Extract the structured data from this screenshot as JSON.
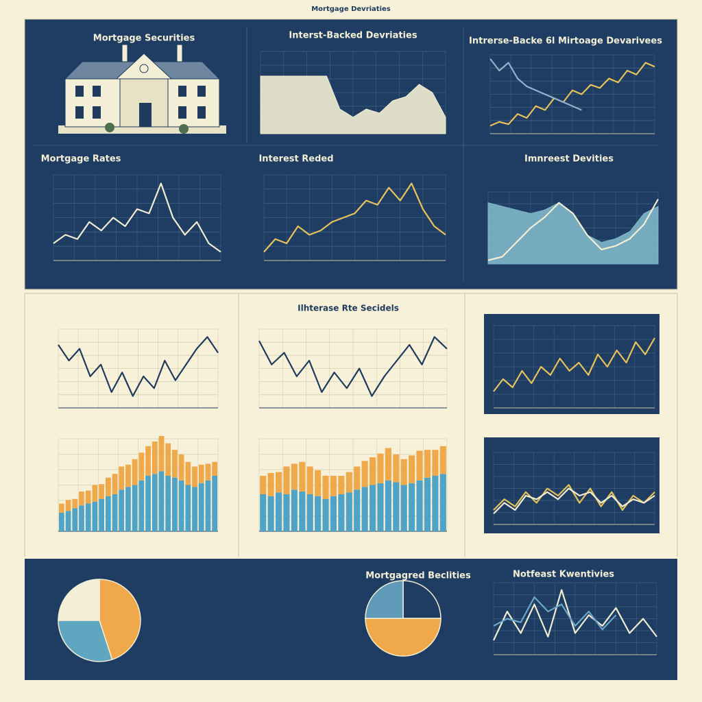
{
  "header": "Mortgage Devriaties",
  "house_panel": {
    "title": "Mortgage Securities"
  },
  "chart_data": [
    {
      "type": "area",
      "title": "Interst-Backed Devriaties",
      "ylim": [
        0,
        100
      ],
      "grid": true,
      "series": [
        {
          "color": "#f2eed3",
          "values": [
            70,
            70,
            70,
            70,
            70,
            70,
            30,
            20,
            30,
            25,
            40,
            45,
            60,
            50,
            20
          ]
        }
      ]
    },
    {
      "type": "line",
      "title": "Intrerse-Backe 6l Mirtoage Devarivees",
      "ylim": [
        0,
        100
      ],
      "grid": true,
      "series": [
        {
          "color": "#e8c35a",
          "values": [
            10,
            15,
            12,
            25,
            20,
            35,
            30,
            45,
            40,
            55,
            50,
            62,
            58,
            70,
            65,
            80,
            75,
            90,
            85
          ]
        },
        {
          "color": "#8fb3c9",
          "values": [
            95,
            80,
            90,
            70,
            60,
            55,
            50,
            45,
            40,
            35,
            30
          ]
        }
      ]
    },
    {
      "type": "line",
      "title": "Mortgage Rates",
      "ylim": [
        0,
        100
      ],
      "grid": true,
      "series": [
        {
          "color": "#f2eed3",
          "values": [
            20,
            30,
            25,
            45,
            35,
            50,
            40,
            60,
            55,
            90,
            50,
            30,
            45,
            20,
            10
          ]
        }
      ]
    },
    {
      "type": "line",
      "title": "Interest Reded",
      "ylim": [
        0,
        100
      ],
      "grid": true,
      "series": [
        {
          "color": "#e8c35a",
          "values": [
            10,
            25,
            20,
            40,
            30,
            35,
            45,
            50,
            55,
            70,
            65,
            85,
            70,
            90,
            60,
            40,
            30
          ]
        }
      ]
    },
    {
      "type": "area",
      "title": "Imnreest Devities",
      "ylim": [
        0,
        100
      ],
      "grid": true,
      "series": [
        {
          "color": "#7fb6c9",
          "values": [
            85,
            80,
            75,
            70,
            75,
            85,
            70,
            40,
            30,
            35,
            45,
            70,
            80
          ]
        },
        {
          "color": "#f2eed3",
          "line": true,
          "values": [
            5,
            10,
            30,
            50,
            65,
            85,
            70,
            40,
            20,
            25,
            35,
            55,
            90
          ]
        }
      ]
    },
    {
      "type": "line",
      "ylim": [
        0,
        100
      ],
      "grid": true,
      "series": [
        {
          "color": "#1e3a5c",
          "values": [
            80,
            60,
            75,
            40,
            55,
            20,
            45,
            15,
            40,
            25,
            60,
            35,
            55,
            75,
            90,
            70
          ]
        }
      ]
    },
    {
      "type": "line",
      "title": "Ilhterase Rte Secidels",
      "ylim": [
        0,
        100
      ],
      "grid": true,
      "series": [
        {
          "color": "#1e3a5c",
          "values": [
            85,
            55,
            70,
            40,
            60,
            20,
            45,
            25,
            50,
            15,
            40,
            60,
            80,
            55,
            90,
            75
          ]
        }
      ]
    },
    {
      "type": "stacked_bar",
      "ylim": [
        0,
        100
      ],
      "grid": true,
      "series": [
        {
          "color": "#4fa3c7",
          "values": [
            20,
            22,
            25,
            28,
            30,
            32,
            35,
            38,
            40,
            45,
            48,
            50,
            55,
            60,
            62,
            65,
            60,
            58,
            55,
            50,
            48,
            52,
            55,
            60
          ]
        },
        {
          "color": "#f0a94a",
          "values": [
            10,
            12,
            10,
            15,
            14,
            18,
            16,
            20,
            22,
            25,
            24,
            28,
            30,
            32,
            35,
            38,
            35,
            30,
            28,
            25,
            22,
            20,
            18,
            15
          ]
        }
      ]
    },
    {
      "type": "stacked_bar",
      "ylim": [
        0,
        100
      ],
      "grid": true,
      "series": [
        {
          "color": "#4fa3c7",
          "values": [
            40,
            38,
            42,
            40,
            45,
            43,
            40,
            38,
            35,
            38,
            40,
            42,
            45,
            48,
            50,
            52,
            55,
            53,
            50,
            52,
            55,
            58,
            60,
            62
          ]
        },
        {
          "color": "#f0a94a",
          "values": [
            20,
            25,
            22,
            30,
            28,
            32,
            30,
            28,
            25,
            22,
            20,
            22,
            25,
            28,
            30,
            32,
            35,
            30,
            28,
            30,
            32,
            30,
            28,
            30
          ]
        }
      ]
    },
    {
      "type": "line",
      "ylim": [
        0,
        100
      ],
      "grid": true,
      "series": [
        {
          "color": "#e8c35a",
          "values": [
            20,
            35,
            25,
            45,
            30,
            50,
            40,
            60,
            45,
            55,
            40,
            65,
            50,
            70,
            55,
            80,
            65,
            85
          ]
        }
      ]
    },
    {
      "type": "line",
      "ylim": [
        0,
        100
      ],
      "grid": true,
      "series": [
        {
          "color": "#e8c35a",
          "values": [
            20,
            35,
            25,
            45,
            30,
            50,
            40,
            55,
            30,
            50,
            25,
            45,
            20,
            40,
            30,
            45
          ]
        },
        {
          "color": "#f2eed3",
          "values": [
            15,
            30,
            20,
            40,
            35,
            45,
            35,
            50,
            40,
            45,
            30,
            40,
            25,
            35,
            30,
            40
          ]
        }
      ]
    },
    {
      "type": "pie",
      "values": [
        45,
        30,
        25
      ],
      "colors": [
        "#f0a94a",
        "#5fa6c0",
        "#f3efd6"
      ]
    },
    {
      "type": "pie",
      "title": "Mortgagred Beclities",
      "values": [
        25,
        50,
        25
      ],
      "colors": [
        "#1f3d62",
        "#f0a94a",
        "#5f9bb8"
      ]
    },
    {
      "type": "line",
      "title": "Notfeast Kwentivies",
      "ylim": [
        0,
        100
      ],
      "grid": true,
      "series": [
        {
          "color": "#f2eed3",
          "values": [
            20,
            60,
            30,
            70,
            25,
            90,
            30,
            55,
            40,
            65,
            30,
            50,
            25
          ]
        },
        {
          "color": "#6aa7c7",
          "values": [
            40,
            50,
            45,
            80,
            60,
            70,
            40,
            60,
            35,
            55
          ]
        }
      ]
    }
  ]
}
